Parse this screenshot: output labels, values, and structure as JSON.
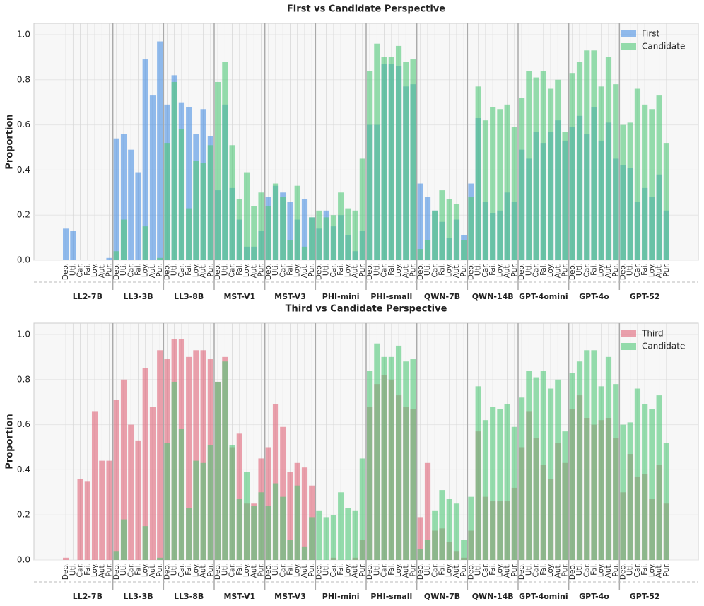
{
  "chart_data": [
    {
      "type": "bar",
      "title": "First vs Candidate Perspective",
      "ylabel": "Proportion",
      "groups": [
        "LL2-7B",
        "LL3-3B",
        "LL3-8B",
        "MST-V1",
        "MST-V3",
        "PHI-mini",
        "PHI-small",
        "QWN-7B",
        "QWN-14B",
        "GPT-4omini",
        "GPT-4o",
        "GPT-52"
      ],
      "categories": [
        "Deo.",
        "Uti.",
        "Car.",
        "Fai.",
        "Loy.",
        "Aut.",
        "Pur.",
        "Deo.",
        "Uti.",
        "Car.",
        "Fai.",
        "Loy.",
        "Aut.",
        "Pur.",
        "Deo.",
        "Uti.",
        "Car.",
        "Fai.",
        "Loy.",
        "Aut.",
        "Pur.",
        "Deo.",
        "Uti.",
        "Car.",
        "Fai.",
        "Loy.",
        "Aut.",
        "Pur.",
        "Deo.",
        "Uti.",
        "Car.",
        "Fai.",
        "Loy.",
        "Aut.",
        "Pur.",
        "Deo.",
        "Uti.",
        "Car.",
        "Fai.",
        "Loy.",
        "Aut.",
        "Pur.",
        "Deo.",
        "Uti.",
        "Car.",
        "Fai.",
        "Loy.",
        "Aut.",
        "Pur.",
        "Deo.",
        "Uti.",
        "Car.",
        "Fai.",
        "Loy.",
        "Aut.",
        "Pur.",
        "Deo.",
        "Uti.",
        "Car.",
        "Fai.",
        "Loy.",
        "Aut.",
        "Pur.",
        "Deo.",
        "Uti.",
        "Car.",
        "Fai.",
        "Loy.",
        "Aut.",
        "Pur.",
        "Deo.",
        "Uti.",
        "Car.",
        "Fai.",
        "Loy.",
        "Aut.",
        "Pur.",
        "Deo.",
        "Uti.",
        "Car.",
        "Fai.",
        "Loy.",
        "Aut.",
        "Pur."
      ],
      "series": [
        {
          "name": "First",
          "color": "#4a90e2",
          "values": [
            0.14,
            0.13,
            0,
            0,
            0,
            0,
            0.01,
            0.54,
            0.56,
            0.49,
            0.39,
            0.89,
            0.73,
            0.97,
            0.69,
            0.82,
            0.7,
            0.68,
            0.56,
            0.67,
            0.55,
            0.31,
            0.69,
            0.32,
            0.18,
            0.06,
            0.06,
            0.13,
            0.28,
            0.33,
            0.3,
            0.26,
            0.18,
            0.27,
            0.19,
            0.14,
            0.22,
            0.15,
            0.2,
            0.11,
            0.04,
            0.13,
            0.6,
            0.6,
            0.87,
            0.87,
            0.86,
            0.77,
            0.78,
            0.34,
            0.28,
            0.22,
            0.17,
            0.1,
            0.18,
            0.11,
            0.34,
            0.63,
            0.26,
            0.21,
            0.22,
            0.3,
            0.26,
            0.49,
            0.45,
            0.57,
            0.52,
            0.57,
            0.62,
            0.53,
            0.59,
            0.64,
            0.56,
            0.68,
            0.53,
            0.61,
            0.45,
            0.42,
            0.41,
            0.26,
            0.32,
            0.28,
            0.38,
            0.22
          ]
        },
        {
          "name": "Candidate",
          "color": "#50c878",
          "values": [
            0,
            0,
            0,
            0,
            0,
            0,
            0,
            0.04,
            0.18,
            0,
            0,
            0.15,
            0,
            0.01,
            0.52,
            0.79,
            0.58,
            0.23,
            0.44,
            0.43,
            0.51,
            0.79,
            0.88,
            0.51,
            0.27,
            0.39,
            0.24,
            0.3,
            0.24,
            0.34,
            0.28,
            0.09,
            0.33,
            0.06,
            0.19,
            0.22,
            0.19,
            0.2,
            0.3,
            0.23,
            0.22,
            0.45,
            0.84,
            0.96,
            0.9,
            0.9,
            0.95,
            0.88,
            0.89,
            0.05,
            0.09,
            0.22,
            0.31,
            0.27,
            0.25,
            0.09,
            0.28,
            0.77,
            0.62,
            0.68,
            0.67,
            0.69,
            0.59,
            0.72,
            0.84,
            0.81,
            0.84,
            0.76,
            0.8,
            0.57,
            0.83,
            0.88,
            0.93,
            0.93,
            0.77,
            0.9,
            0.78,
            0.6,
            0.61,
            0.76,
            0.69,
            0.67,
            0.73,
            0.52
          ]
        }
      ],
      "ylim": [
        0,
        1.05
      ],
      "yticks": [
        {
          "value": 0,
          "label": "0.0"
        },
        0.2,
        0.4,
        0.6,
        0.8,
        {
          "value": 1,
          "label": "1.0"
        }
      ],
      "grid": true,
      "legend": "upper right"
    },
    {
      "type": "bar",
      "title": "Third vs Candidate Perspective",
      "ylabel": "Proportion",
      "groups": [
        "LL2-7B",
        "LL3-3B",
        "LL3-8B",
        "MST-V1",
        "MST-V3",
        "PHI-mini",
        "PHI-small",
        "QWN-7B",
        "QWN-14B",
        "GPT-4omini",
        "GPT-4o",
        "GPT-52"
      ],
      "categories": [
        "Deo.",
        "Uti.",
        "Car.",
        "Fai.",
        "Loy.",
        "Aut.",
        "Pur.",
        "Deo.",
        "Uti.",
        "Car.",
        "Fai.",
        "Loy.",
        "Aut.",
        "Pur.",
        "Deo.",
        "Uti.",
        "Car.",
        "Fai.",
        "Loy.",
        "Aut.",
        "Pur.",
        "Deo.",
        "Uti.",
        "Car.",
        "Fai.",
        "Loy.",
        "Aut.",
        "Pur.",
        "Deo.",
        "Uti.",
        "Car.",
        "Fai.",
        "Loy.",
        "Aut.",
        "Pur.",
        "Deo.",
        "Uti.",
        "Car.",
        "Fai.",
        "Loy.",
        "Aut.",
        "Pur.",
        "Deo.",
        "Uti.",
        "Car.",
        "Fai.",
        "Loy.",
        "Aut.",
        "Pur.",
        "Deo.",
        "Uti.",
        "Car.",
        "Fai.",
        "Loy.",
        "Aut.",
        "Pur.",
        "Deo.",
        "Uti.",
        "Car.",
        "Fai.",
        "Loy.",
        "Aut.",
        "Pur.",
        "Deo.",
        "Uti.",
        "Car.",
        "Fai.",
        "Loy.",
        "Aut.",
        "Pur.",
        "Deo.",
        "Uti.",
        "Car.",
        "Fai.",
        "Loy.",
        "Aut.",
        "Pur.",
        "Deo.",
        "Uti.",
        "Car.",
        "Fai.",
        "Loy.",
        "Aut.",
        "Pur."
      ],
      "series": [
        {
          "name": "Third",
          "color": "#e06478",
          "values": [
            0.01,
            0,
            0.36,
            0.35,
            0.66,
            0.44,
            0.44,
            0.71,
            0.8,
            0.6,
            0.53,
            0.85,
            0.68,
            0.93,
            0.89,
            0.98,
            0.98,
            0.9,
            0.93,
            0.93,
            0.89,
            0.79,
            0.9,
            0.5,
            0.56,
            0.25,
            0.25,
            0.45,
            0.5,
            0.69,
            0.59,
            0.39,
            0.43,
            0.41,
            0.33,
            0,
            0,
            0.01,
            0,
            0,
            0.01,
            0.09,
            0.68,
            0.78,
            0.82,
            0.8,
            0.73,
            0.68,
            0.67,
            0.19,
            0.43,
            0.13,
            0.14,
            0.08,
            0.04,
            0.01,
            0.13,
            0.57,
            0.28,
            0.26,
            0.26,
            0.26,
            0.32,
            0.5,
            0.66,
            0.54,
            0.42,
            0.36,
            0.52,
            0.43,
            0.67,
            0.73,
            0.63,
            0.6,
            0.62,
            0.63,
            0.54,
            0.3,
            0.47,
            0.37,
            0.38,
            0.27,
            0.42,
            0.25
          ]
        },
        {
          "name": "Candidate",
          "color": "#50c878",
          "values": [
            0,
            0,
            0,
            0,
            0,
            0,
            0,
            0.04,
            0.18,
            0,
            0,
            0.15,
            0,
            0.01,
            0.52,
            0.79,
            0.58,
            0.23,
            0.44,
            0.43,
            0.51,
            0.79,
            0.88,
            0.51,
            0.27,
            0.39,
            0.24,
            0.3,
            0.24,
            0.34,
            0.28,
            0.09,
            0.33,
            0.06,
            0.19,
            0.22,
            0.19,
            0.2,
            0.3,
            0.23,
            0.22,
            0.45,
            0.84,
            0.96,
            0.9,
            0.9,
            0.95,
            0.88,
            0.89,
            0.05,
            0.09,
            0.22,
            0.31,
            0.27,
            0.25,
            0.09,
            0.28,
            0.77,
            0.62,
            0.68,
            0.67,
            0.69,
            0.59,
            0.72,
            0.84,
            0.81,
            0.84,
            0.76,
            0.8,
            0.57,
            0.83,
            0.88,
            0.93,
            0.93,
            0.77,
            0.9,
            0.78,
            0.6,
            0.61,
            0.76,
            0.69,
            0.67,
            0.73,
            0.52
          ]
        }
      ],
      "ylim": [
        0,
        1.05
      ],
      "yticks": [
        {
          "value": 0,
          "label": "0.0"
        },
        0.2,
        0.4,
        0.6,
        0.8,
        {
          "value": 1,
          "label": "1.0"
        }
      ],
      "grid": true,
      "legend": "upper right"
    }
  ]
}
